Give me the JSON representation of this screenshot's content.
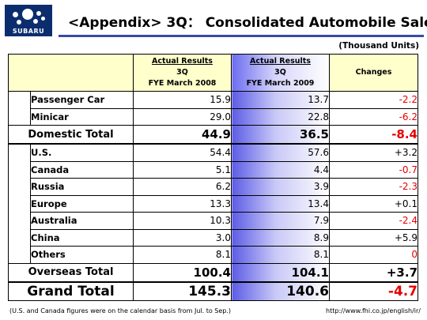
{
  "logo": {
    "text": "SUBARU"
  },
  "title": "<Appendix> 3Q： Consolidated Automobile Sales",
  "units": "(Thousand Units)",
  "columns": {
    "a": {
      "line1": "Actual Results",
      "line2": "3Q",
      "line3": "FYE March 2008"
    },
    "b": {
      "line1": "Actual Results",
      "line2": "3Q",
      "line3": "FYE March 2009"
    },
    "c": {
      "line1": "Changes"
    }
  },
  "domestic": {
    "rows": [
      {
        "label": "Passenger Car",
        "a": "15.9",
        "b": "13.7",
        "change": "-2.2"
      },
      {
        "label": "Minicar",
        "a": "29.0",
        "b": "22.8",
        "change": "-6.2"
      }
    ],
    "total": {
      "label": "Domestic Total",
      "a": "44.9",
      "b": "36.5",
      "change": "-8.4"
    }
  },
  "overseas": {
    "rows": [
      {
        "label": "U.S.",
        "a": "54.4",
        "b": "57.6",
        "change": "+3.2"
      },
      {
        "label": "Canada",
        "a": "5.1",
        "b": "4.4",
        "change": "-0.7"
      },
      {
        "label": "Russia",
        "a": "6.2",
        "b": "3.9",
        "change": "-2.3"
      },
      {
        "label": "Europe",
        "a": "13.3",
        "b": "13.4",
        "change": "+0.1"
      },
      {
        "label": "Australia",
        "a": "10.3",
        "b": "7.9",
        "change": "-2.4"
      },
      {
        "label": "China",
        "a": "3.0",
        "b": "8.9",
        "change": "+5.9"
      },
      {
        "label": "Others",
        "a": "8.1",
        "b": "8.1",
        "change": "0"
      }
    ],
    "total": {
      "label": "Overseas Total",
      "a": "100.4",
      "b": "104.1",
      "change": "+3.7"
    }
  },
  "grand": {
    "label": "Grand Total",
    "a": "145.3",
    "b": "140.6",
    "change": "-4.7"
  },
  "footnote": "(U.S. and Canada figures were on the calendar basis from Jul. to Sep.)",
  "url": "http://www.fhi.co.jp/english/ir/",
  "colors": {
    "negative": "#e60000",
    "positive": "#000000",
    "header_bg": "#ffffcc",
    "accent_blue": "#5c5ce6"
  }
}
